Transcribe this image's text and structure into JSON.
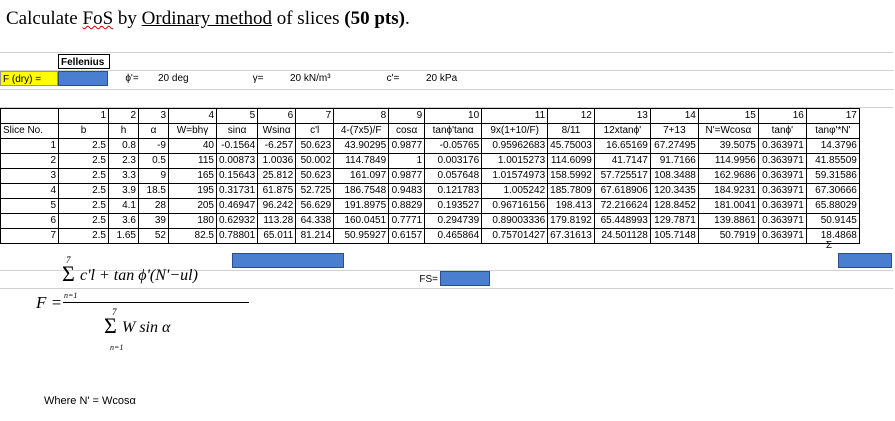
{
  "title": {
    "prefix": "Calculate ",
    "fos": "FoS",
    "by": " by ",
    "method": "Ordinary  method",
    "of": " of slices ",
    "points": "(50 pts)",
    "dot": "."
  },
  "params": {
    "fellenius_label": "Fellenius",
    "f_dry_label": "F (dry) =",
    "phi_label": "ϕ'=",
    "phi_value": "20 deg",
    "gamma_label": "γ=",
    "gamma_value": "20 kN/m³",
    "c_label": "c'=",
    "c_value": "20 kPa"
  },
  "table": {
    "col_numbers": [
      "",
      "1",
      "2",
      "3",
      "4",
      "5",
      "6",
      "7",
      "8",
      "9",
      "10",
      "11",
      "12",
      "13",
      "14",
      "15",
      "16",
      "17"
    ],
    "headers": [
      "Slice No.",
      "b",
      "h",
      "α",
      "W=bhγ",
      "sinα",
      "Wsinα",
      "c'l",
      "4-(7x5)/F",
      "cosα",
      "tanϕ'tanα",
      "9x(1+10/F)",
      "8/11",
      "12xtanϕ'",
      "7+13",
      "N'=Wcosα",
      "tanϕ'",
      "tanφ'*N'"
    ],
    "rows": [
      [
        "1",
        "2.5",
        "0.8",
        "-9",
        "40",
        "-0.1564",
        "-6.257",
        "50.623",
        "43.90295",
        "0.9877",
        "-0.05765",
        "0.95962683",
        "45.75003",
        "16.65169",
        "67.27495",
        "39.5075",
        "0.363971",
        "14.3796"
      ],
      [
        "2",
        "2.5",
        "2.3",
        "0.5",
        "115",
        "0.00873",
        "1.0036",
        "50.002",
        "114.7849",
        "1",
        "0.003176",
        "1.0015273",
        "114.6099",
        "41.7147",
        "91.7166",
        "114.9956",
        "0.363971",
        "41.85509"
      ],
      [
        "3",
        "2.5",
        "3.3",
        "9",
        "165",
        "0.15643",
        "25.812",
        "50.623",
        "161.097",
        "0.9877",
        "0.057648",
        "1.01574973",
        "158.5992",
        "57.725517",
        "108.3488",
        "162.9686",
        "0.363971",
        "59.31586"
      ],
      [
        "4",
        "2.5",
        "3.9",
        "18.5",
        "195",
        "0.31731",
        "61.875",
        "52.725",
        "186.7548",
        "0.9483",
        "0.121783",
        "1.005242",
        "185.7809",
        "67.618906",
        "120.3435",
        "184.9231",
        "0.363971",
        "67.30666"
      ],
      [
        "5",
        "2.5",
        "4.1",
        "28",
        "205",
        "0.46947",
        "96.242",
        "56.629",
        "191.8975",
        "0.8829",
        "0.193527",
        "0.96716156",
        "198.413",
        "72.216624",
        "128.8452",
        "181.0041",
        "0.363971",
        "65.88029"
      ],
      [
        "6",
        "2.5",
        "3.6",
        "39",
        "180",
        "0.62932",
        "113.28",
        "64.338",
        "160.0451",
        "0.7771",
        "0.294739",
        "0.89003336",
        "179.8192",
        "65.448993",
        "129.7871",
        "139.8861",
        "0.363971",
        "50.9145"
      ],
      [
        "7",
        "2.5",
        "1.65",
        "52",
        "82.5",
        "0.78801",
        "65.011",
        "81.214",
        "50.95927",
        "0.6157",
        "0.465864",
        "0.75701427",
        "67.31613",
        "24.501128",
        "105.7148",
        "50.7919",
        "0.363971",
        "18.4868"
      ]
    ],
    "sum_symbol": "Σ"
  },
  "fs_label": "FS=",
  "formula": {
    "lhs": "F =",
    "numerator": "c'l + tan ϕ'(N'−ul)",
    "denominator": "W sin α",
    "sum_upper": "7",
    "sum_lower": "n=1"
  },
  "note": "Where N' = Wcosα"
}
